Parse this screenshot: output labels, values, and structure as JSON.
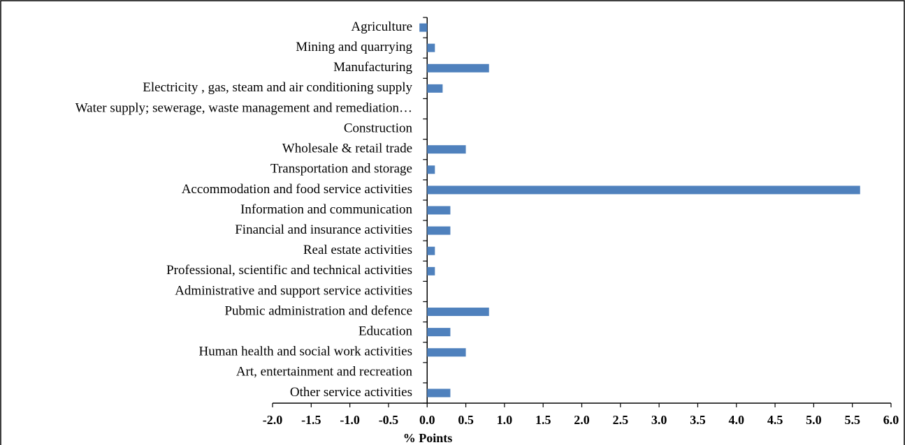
{
  "chart_data": {
    "type": "bar",
    "orientation": "horizontal",
    "x_label": "% Points",
    "categories": [
      "Agriculture",
      "Mining and quarrying",
      "Manufacturing",
      "Electricity , gas, steam and air conditioning supply",
      "Water supply; sewerage, waste management and remediation…",
      "Construction",
      "Wholesale & retail trade",
      "Transportation and storage",
      "Accommodation and food service activities",
      "Information and communication",
      "Financial and insurance activities",
      "Real estate activities",
      "Professional, scientific and technical activities",
      "Administrative and support service activities",
      "Pubmic administration  and defence",
      "Education",
      "Human health and social work activities",
      "Art, entertainment and recreation",
      "Other service activities"
    ],
    "values": [
      -0.1,
      0.1,
      0.8,
      0.2,
      0,
      0,
      0.5,
      0.1,
      5.6,
      0.3,
      0.3,
      0.1,
      0.1,
      0,
      0.8,
      0.3,
      0.5,
      0,
      0.3
    ],
    "color": "#4f81bd",
    "xlim": [
      -2,
      6
    ],
    "xticks": [
      {
        "value": -2,
        "label": "-2.0"
      },
      -1.5,
      {
        "value": -1,
        "label": "-1.0"
      },
      -0.5,
      {
        "value": 0,
        "label": "0.0"
      },
      0.5,
      {
        "value": 1,
        "label": "1.0"
      },
      1.5,
      {
        "value": 2,
        "label": "2.0"
      },
      2.5,
      {
        "value": 3,
        "label": "3.0"
      },
      3.5,
      {
        "value": 4,
        "label": "4.0"
      },
      4.5,
      {
        "value": 5,
        "label": "5.0"
      },
      5.5,
      {
        "value": 6,
        "label": "6.0"
      }
    ],
    "grid": false
  }
}
